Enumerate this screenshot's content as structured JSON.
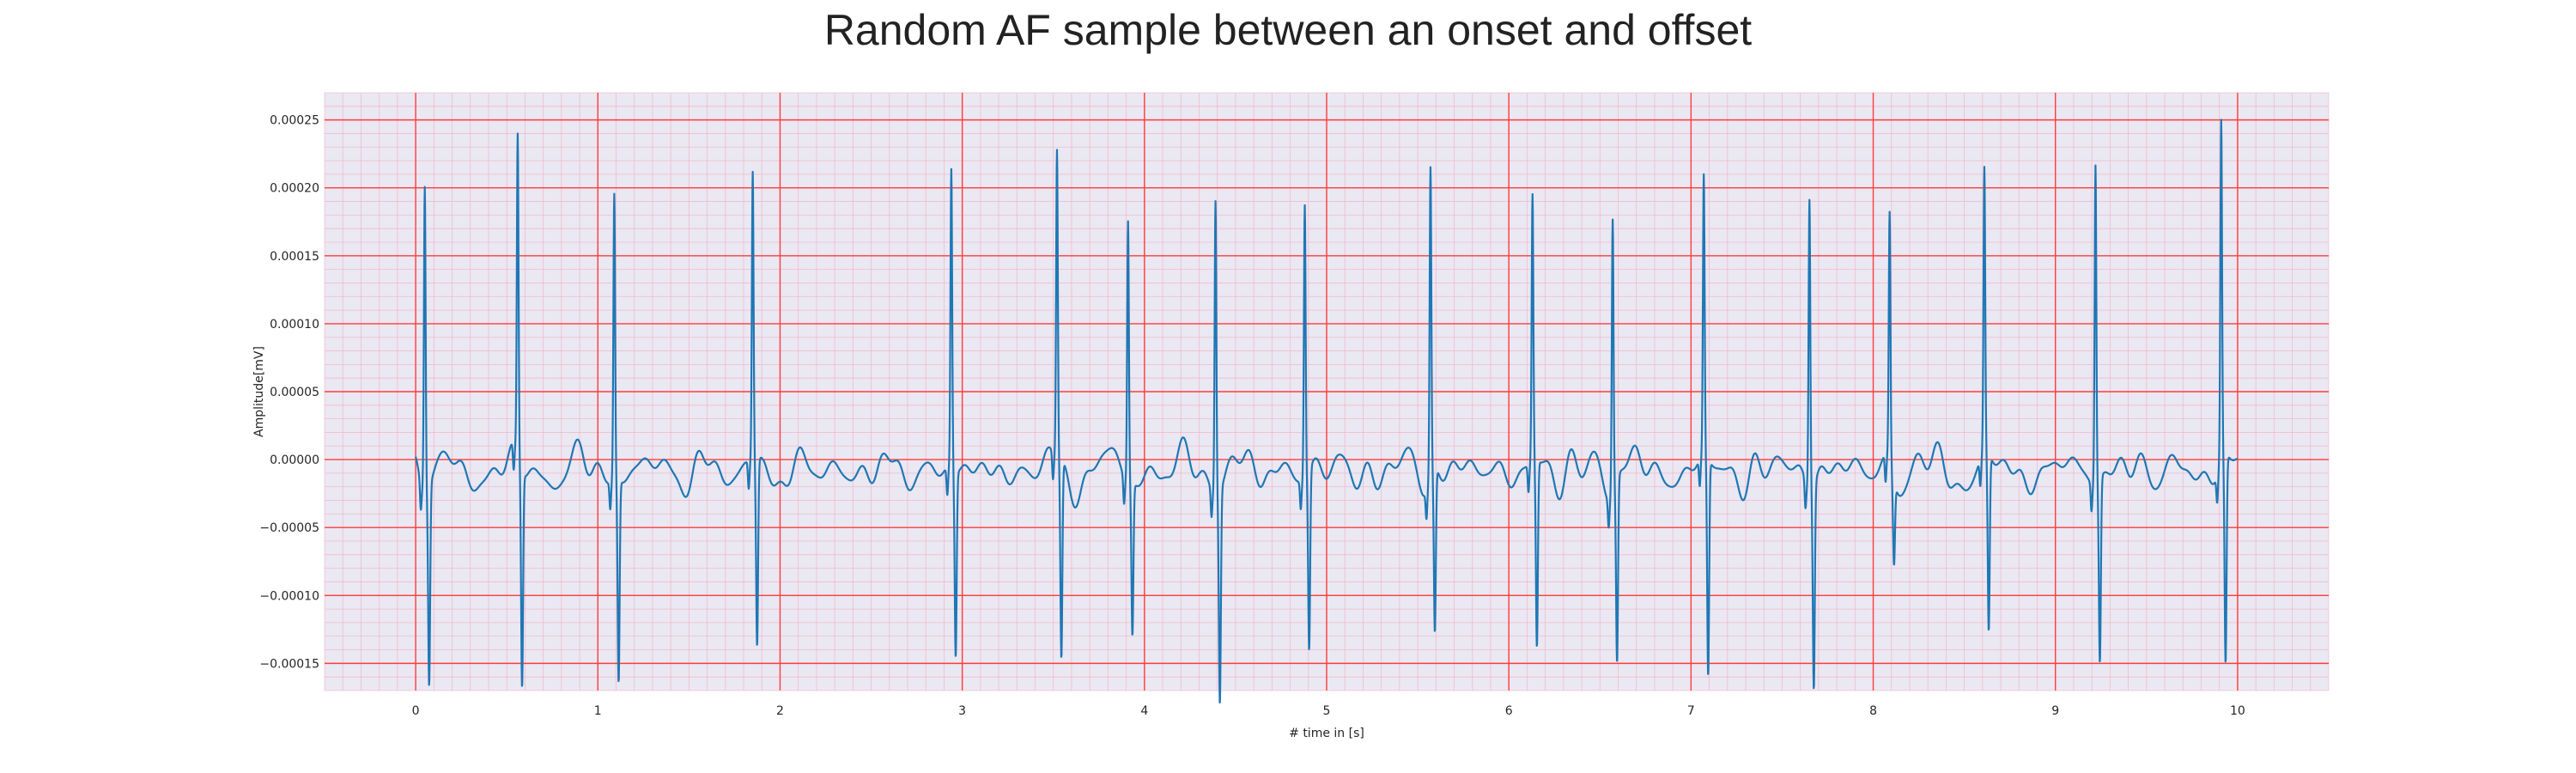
{
  "chart_data": {
    "type": "line",
    "title": "Random AF sample between an onset and offset",
    "xlabel": "# time in [s]",
    "ylabel": "Amplitude[mV]",
    "xlim": [
      -0.5,
      10.5
    ],
    "ylim": [
      -0.00017,
      0.00027
    ],
    "x_ticks": [
      0,
      1,
      2,
      3,
      4,
      5,
      6,
      7,
      8,
      9,
      10
    ],
    "x_tick_labels": [
      "0",
      "1",
      "2",
      "3",
      "4",
      "5",
      "6",
      "7",
      "8",
      "9",
      "10"
    ],
    "y_ticks": [
      -0.00015,
      -0.0001,
      -5e-05,
      0,
      5e-05,
      0.0001,
      0.00015,
      0.0002,
      0.00025
    ],
    "y_tick_labels": [
      "−0.00015",
      "−0.00010",
      "−0.00005",
      "0.00000",
      "0.00005",
      "0.00010",
      "0.00015",
      "0.00020",
      "0.00025"
    ],
    "grid": true,
    "major_grid_color": "#ff3b3b",
    "minor_grid_color": "#f3a9bf",
    "plot_background": "#eae8f2",
    "series": [
      {
        "color": "#1f77b4",
        "beats": [
          {
            "t": 0.05,
            "peak": 0.000226,
            "trough": -0.000136
          },
          {
            "t": 0.56,
            "peak": 0.000236,
            "trough": -0.000149
          },
          {
            "t": 1.09,
            "peak": 0.00021,
            "trough": -0.000139
          },
          {
            "t": 1.85,
            "peak": 0.000214,
            "trough": -0.000127
          },
          {
            "t": 2.94,
            "peak": 0.000221,
            "trough": -0.000126
          },
          {
            "t": 3.52,
            "peak": 0.000227,
            "trough": -0.000136
          },
          {
            "t": 3.91,
            "peak": 0.000192,
            "trough": -0.000102
          },
          {
            "t": 4.39,
            "peak": 0.000217,
            "trough": -0.000146
          },
          {
            "t": 4.88,
            "peak": 0.000202,
            "trough": -0.000122
          },
          {
            "t": 5.57,
            "peak": 0.000228,
            "trough": -0.000111
          },
          {
            "t": 6.13,
            "peak": 0.000197,
            "trough": -0.000127
          },
          {
            "t": 6.57,
            "peak": 0.000202,
            "trough": -0.000125
          },
          {
            "t": 7.07,
            "peak": 0.000206,
            "trough": -0.00015
          },
          {
            "t": 7.65,
            "peak": 0.000215,
            "trough": -0.000139
          },
          {
            "t": 8.09,
            "peak": 0.000184,
            "trough": -5.2e-05
          },
          {
            "t": 8.61,
            "peak": 0.000209,
            "trough": -0.000121
          },
          {
            "t": 9.22,
            "peak": 0.000236,
            "trough": -0.000125
          },
          {
            "t": 9.91,
            "peak": 0.000251,
            "trough": -0.000144
          }
        ],
        "baseline_noise_amplitude": 2.5e-05,
        "t_start": 0.0,
        "t_end": 10.0
      }
    ]
  }
}
